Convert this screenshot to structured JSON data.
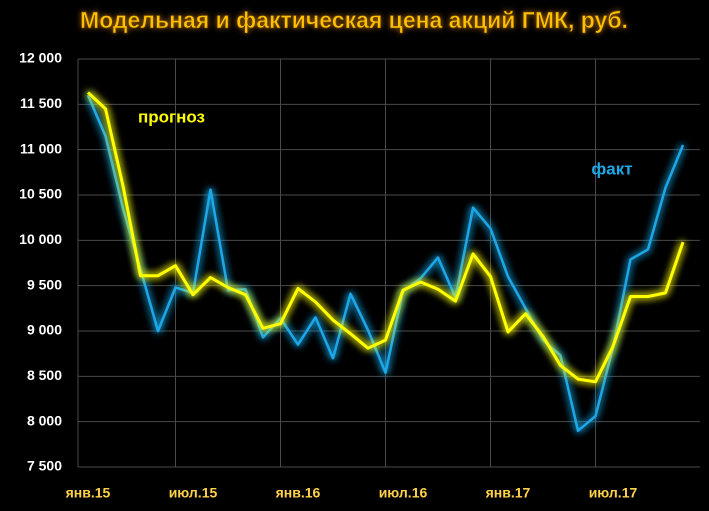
{
  "chart_data": {
    "type": "line",
    "title": "Модельная и фактическая цена акций ГМК, руб.",
    "categories": [
      "янв.15",
      null,
      null,
      null,
      null,
      null,
      "июл.15",
      null,
      null,
      null,
      null,
      null,
      "янв.16",
      null,
      null,
      null,
      null,
      null,
      "июл.16",
      null,
      null,
      null,
      null,
      null,
      "янв.17",
      null,
      null,
      null,
      null,
      null,
      "июл.17",
      null,
      null,
      null,
      null
    ],
    "series": [
      {
        "name": "факт",
        "color": "#1ea8e8",
        "values": [
          11600,
          11150,
          10350,
          9680,
          9000,
          9480,
          9420,
          10560,
          9450,
          9460,
          8930,
          9140,
          8850,
          9150,
          8700,
          9410,
          9010,
          8540,
          9440,
          9580,
          9810,
          9370,
          10360,
          10130,
          9600,
          9250,
          8900,
          8730,
          7900,
          8060,
          8820,
          9790,
          9900,
          10580,
          11050
        ]
      },
      {
        "name": "прогноз",
        "color": "#ffff00",
        "values": [
          11630,
          11450,
          10600,
          9610,
          9610,
          9720,
          9400,
          9590,
          9480,
          9400,
          9030,
          9080,
          9470,
          9320,
          9120,
          8970,
          8810,
          8900,
          9450,
          9540,
          9460,
          9330,
          9850,
          9600,
          8990,
          9190,
          8940,
          8620,
          8470,
          8440,
          8830,
          9380,
          9380,
          9420,
          9980
        ]
      }
    ],
    "ylim": [
      7500,
      12000
    ],
    "yticks": [
      {
        "value": 7500,
        "label": "7 500"
      },
      {
        "value": 8000,
        "label": "8 000"
      },
      {
        "value": 8500,
        "label": "8 500"
      },
      {
        "value": 9000,
        "label": "9 000"
      },
      {
        "value": 9500,
        "label": "9 500"
      },
      {
        "value": 10000,
        "label": "10 000"
      },
      {
        "value": 10500,
        "label": "10 500"
      },
      {
        "value": 11000,
        "label": "11 000"
      },
      {
        "value": 11500,
        "label": "11 500"
      },
      {
        "value": 12000,
        "label": "12 000"
      }
    ],
    "grid": true
  }
}
